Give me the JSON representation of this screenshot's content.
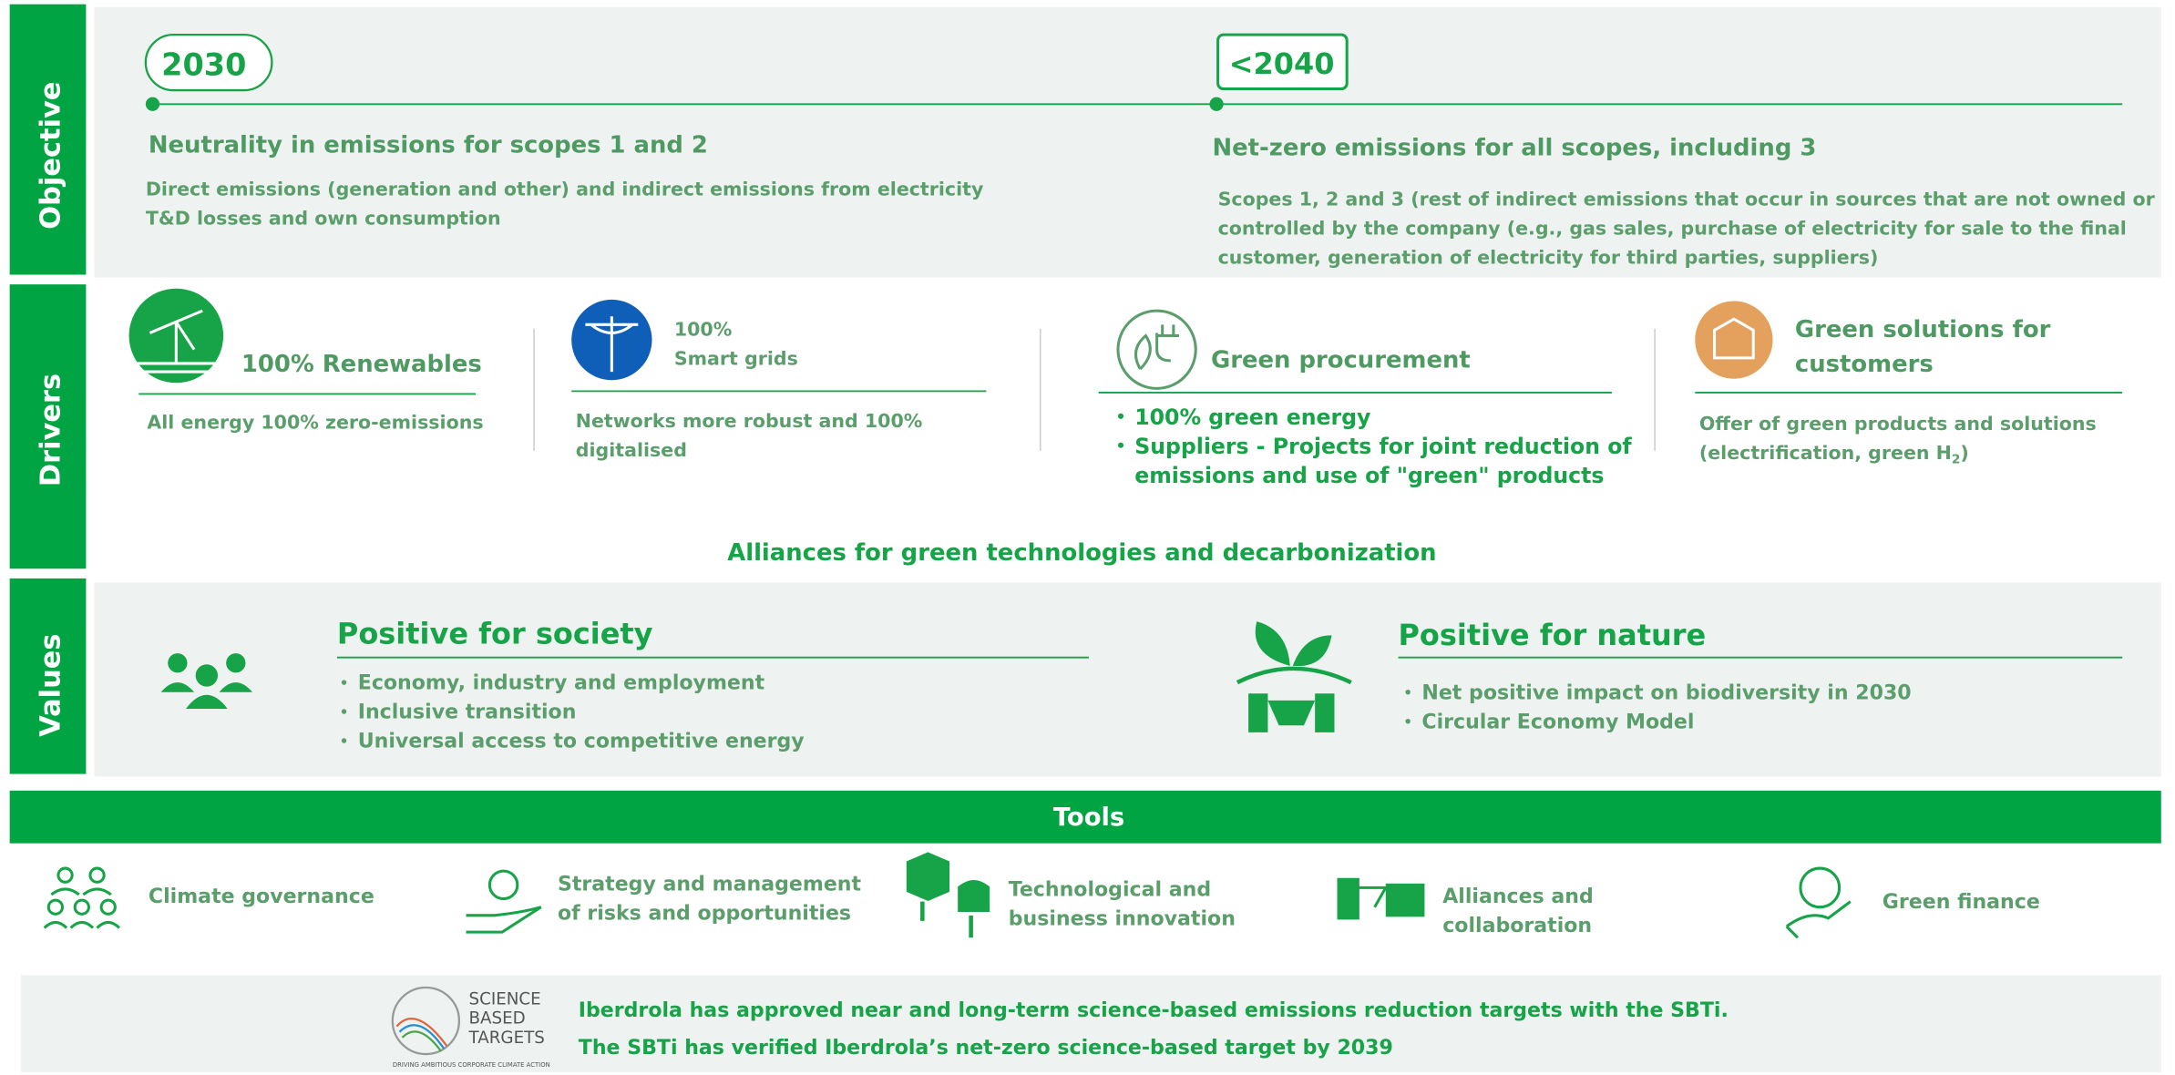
{
  "sidebar": {
    "objective": "Objective",
    "drivers": "Drivers",
    "values": "Values"
  },
  "objective": {
    "left": {
      "year": "2030",
      "title": "Neutrality in  emissions for scopes 1 and 2",
      "lines": [
        "Direct emissions (generation and other) and indirect emissions from electricity",
        "T&D losses and own consumption"
      ]
    },
    "right": {
      "year": "<2040",
      "title": "Net-zero emissions for all scopes, including 3",
      "lines": [
        "Scopes 1, 2 and 3 (rest of indirect emissions that occur in sources that are not owned or",
        "controlled by the company (e.g., gas sales, purchase of electricity for sale to the final",
        "customer, generation of electricity for third parties, suppliers)"
      ]
    }
  },
  "drivers": {
    "renewables": {
      "title": "100% Renewables",
      "desc": "All energy 100% zero-emissions"
    },
    "grids": {
      "title": [
        "100%",
        "Smart grids"
      ],
      "desc": [
        "Networks more robust and 100%",
        "digitalised"
      ]
    },
    "procurement": {
      "title": "Green procurement",
      "bullets": [
        [
          "100% green energy"
        ],
        [
          "Suppliers - Projects for joint reduction of",
          "emissions and use of \"green\" products"
        ]
      ]
    },
    "solutions": {
      "title": [
        "Green solutions for",
        "customers"
      ],
      "desc": [
        "Offer of green products and solutions",
        "(electrification, green H",
        "2",
        ")"
      ]
    },
    "alliances": "Alliances for green technologies and decarbonization"
  },
  "values": {
    "society": {
      "title": "Positive for society",
      "bullets": [
        "Economy, industry and employment",
        "Inclusive transition",
        "Universal access to competitive energy"
      ]
    },
    "nature": {
      "title": "Positive for nature",
      "bullets": [
        "Net positive impact on biodiversity in 2030",
        "Circular Economy Model"
      ]
    }
  },
  "tools": {
    "title": "Tools",
    "items": [
      [
        "Climate governance"
      ],
      [
        "Strategy and management",
        "of risks and opportunities"
      ],
      [
        "Technological  and",
        "business innovation"
      ],
      [
        "Alliances and",
        "collaboration"
      ],
      [
        "Green finance"
      ]
    ]
  },
  "footer": {
    "logo": [
      "SCIENCE",
      "BASED",
      "TARGETS"
    ],
    "tagline": "DRIVING AMBITIOUS CORPORATE CLIMATE ACTION",
    "lines": [
      "Iberdrola has approved near and long-term science-based emissions reduction targets with the SBTi.",
      "The SBTi has verified Iberdrola’s net-zero science-based target by 2039"
    ]
  }
}
